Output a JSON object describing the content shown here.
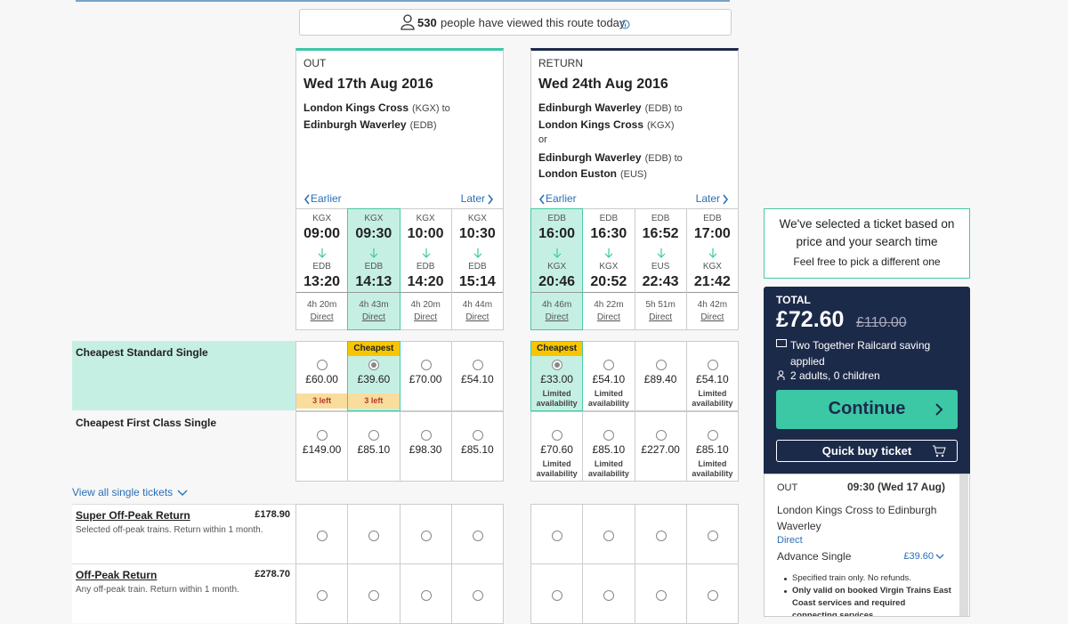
{
  "banner": {
    "count": "530",
    "text": "people have viewed this route today"
  },
  "journeys": [
    {
      "label": "OUT",
      "date": "Wed 17th Aug 2016",
      "accent": "#3cc7a5",
      "selected": 1,
      "route": [
        {
          "station": "London Kings Cross",
          "code": "(KGX) to"
        },
        {
          "station": "Edinburgh Waverley",
          "code": "(EDB)"
        }
      ],
      "earlier": "Earlier",
      "later": "Later",
      "trains": [
        {
          "from": "KGX",
          "dep": "09:00",
          "to": "EDB",
          "arr": "13:20",
          "duration": "4h 20m",
          "type": "Direct"
        },
        {
          "from": "KGX",
          "dep": "09:30",
          "to": "EDB",
          "arr": "14:13",
          "duration": "4h 43m",
          "type": "Direct"
        },
        {
          "from": "KGX",
          "dep": "10:00",
          "to": "EDB",
          "arr": "14:20",
          "duration": "4h 20m",
          "type": "Direct"
        },
        {
          "from": "KGX",
          "dep": "10:30",
          "to": "EDB",
          "arr": "15:14",
          "duration": "4h 44m",
          "type": "Direct"
        }
      ]
    },
    {
      "label": "RETURN",
      "date": "Wed 24th Aug 2016",
      "accent": "#1c2a4a",
      "selected": 0,
      "route": [
        {
          "station": "Edinburgh Waverley",
          "code": "(EDB) to"
        },
        {
          "station": "London Kings Cross",
          "code": "(KGX)"
        },
        {
          "text": "or"
        },
        {
          "station": "Edinburgh Waverley",
          "code": "(EDB) to"
        },
        {
          "station": "London Euston",
          "code": "(EUS)"
        }
      ],
      "earlier": "Earlier",
      "later": "Later",
      "trains": [
        {
          "from": "EDB",
          "dep": "16:00",
          "to": "KGX",
          "arr": "20:46",
          "duration": "4h 46m",
          "type": "Direct"
        },
        {
          "from": "EDB",
          "dep": "16:30",
          "to": "KGX",
          "arr": "20:52",
          "duration": "4h 22m",
          "type": "Direct"
        },
        {
          "from": "EDB",
          "dep": "16:52",
          "to": "EUS",
          "arr": "22:43",
          "duration": "5h 51m",
          "type": "Direct"
        },
        {
          "from": "EDB",
          "dep": "17:00",
          "to": "KGX",
          "arr": "21:42",
          "duration": "4h 42m",
          "type": "Direct"
        }
      ]
    }
  ],
  "fares": [
    {
      "label": "Cheapest Standard Single",
      "fares": [
        [
          {
            "price": "£60.00",
            "note": "3 left"
          },
          {
            "badge": "Cheapest",
            "price": "£39.60",
            "note": "3 left"
          },
          {
            "price": "£70.00"
          },
          {
            "price": "£54.10"
          }
        ],
        [
          {
            "badge": "Cheapest",
            "price": "£33.00",
            "note": "Limited availability"
          },
          {
            "price": "£54.10",
            "note": "Limited availability"
          },
          {
            "price": "£89.40"
          },
          {
            "price": "£54.10",
            "note": "Limited availability"
          }
        ]
      ]
    },
    {
      "label": "Cheapest First Class Single",
      "fares": [
        [
          {
            "price": "£149.00"
          },
          {
            "price": "£85.10"
          },
          {
            "price": "£98.30"
          },
          {
            "price": "£85.10"
          }
        ],
        [
          {
            "price": "£70.60",
            "note": "Limited availability"
          },
          {
            "price": "£85.10",
            "note": "Limited availability"
          },
          {
            "price": "£227.00"
          },
          {
            "price": "£85.10",
            "note": "Limited availability"
          }
        ]
      ]
    }
  ],
  "view_all": "View all single tickets",
  "returns": [
    {
      "name": "Super Off-Peak Return",
      "price": "£178.90",
      "desc": "Selected off-peak trains. Return within 1 month."
    },
    {
      "name": "Off-Peak Return",
      "price": "£278.70",
      "desc": "Any off-peak train. Return within 1 month."
    }
  ],
  "tooltip": {
    "lines": [
      "We've selected a ticket based on",
      "price and your search time"
    ],
    "sub": "Feel free to pick a different one"
  },
  "summary": {
    "total_label": "TOTAL",
    "total": "£72.60",
    "was": "£110.00",
    "railcard": "Two Together Railcard saving applied",
    "passengers": "2 adults, 0 children",
    "continue": "Continue",
    "quick_buy": "Quick buy ticket"
  },
  "detail": {
    "direction": "OUT",
    "time": "09:30 (Wed 17 Aug)",
    "route": "London Kings Cross to Edinburgh Waverley",
    "type": "Direct",
    "ticket": "Advance Single",
    "price": "£39.60",
    "notes": [
      "Specified train only. No refunds.",
      "Only valid on booked Virgin Trains East Coast services and required connecting services"
    ]
  }
}
